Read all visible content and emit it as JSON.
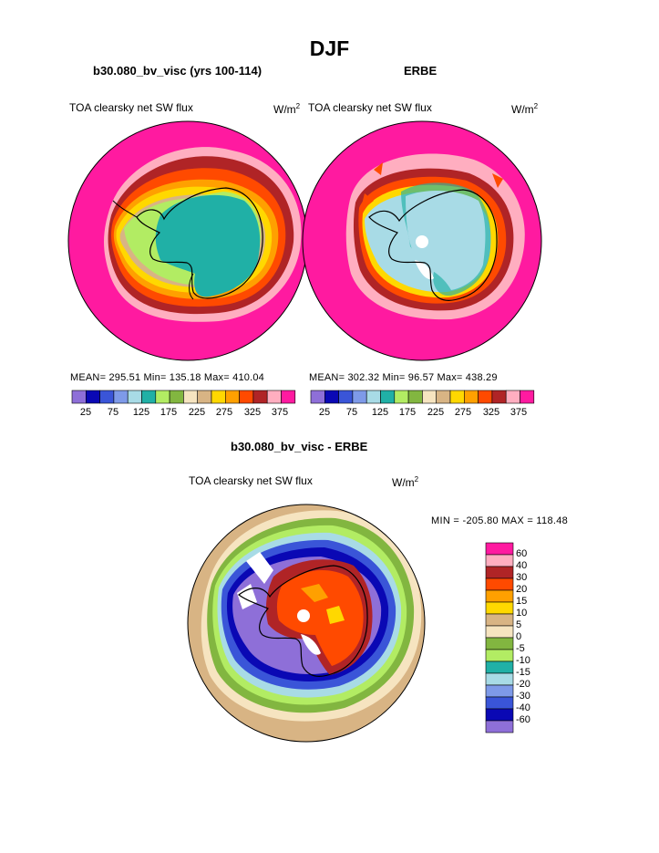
{
  "title": "DJF",
  "colors": {
    "seq": [
      "#8e6fd8",
      "#0a08b4",
      "#3a55d8",
      "#7e9ae8",
      "#a8dbe6",
      "#20b0a6",
      "#b2ec63",
      "#82b640",
      "#f6e4c0",
      "#d8b484",
      "#ffd800",
      "#ffa000",
      "#ff4a00",
      "#b02426",
      "#ffaec0",
      "#ff1aa0"
    ],
    "diff": [
      "#ff1aa0",
      "#ffaec0",
      "#b02426",
      "#ff4a00",
      "#ffa000",
      "#ffd800",
      "#d8b484",
      "#f6e4c0",
      "#82b640",
      "#b2ec63",
      "#20b0a6",
      "#a8dbe6",
      "#7e9ae8",
      "#3a55d8",
      "#0a08b4",
      "#8e6fd8"
    ]
  },
  "panels": [
    {
      "name": "b30.080_bv_visc (yrs 100-114)",
      "variable": "TOA clearsky net SW flux",
      "units": "W/m",
      "units_exp": "2",
      "stats": "MEAN= 295.51   Min= 135.18   Max= 410.04"
    },
    {
      "name": "ERBE",
      "variable": "TOA clearsky net SW flux",
      "units": "W/m",
      "units_exp": "2",
      "stats": "MEAN= 302.32   Min=  96.57   Max= 438.29"
    }
  ],
  "colorbar_ticks": [
    "25",
    "75",
    "125",
    "175",
    "225",
    "275",
    "325",
    "375"
  ],
  "difference": {
    "name": "b30.080_bv_visc - ERBE",
    "variable": "TOA clearsky net SW flux",
    "units": "W/m",
    "units_exp": "2",
    "minmax": "MIN = -205.80  MAX = 118.48",
    "legend_labels": [
      "60",
      "40",
      "30",
      "20",
      "15",
      "10",
      "5",
      "0",
      "-5",
      "-10",
      "-15",
      "-20",
      "-30",
      "-40",
      "-60"
    ]
  }
}
